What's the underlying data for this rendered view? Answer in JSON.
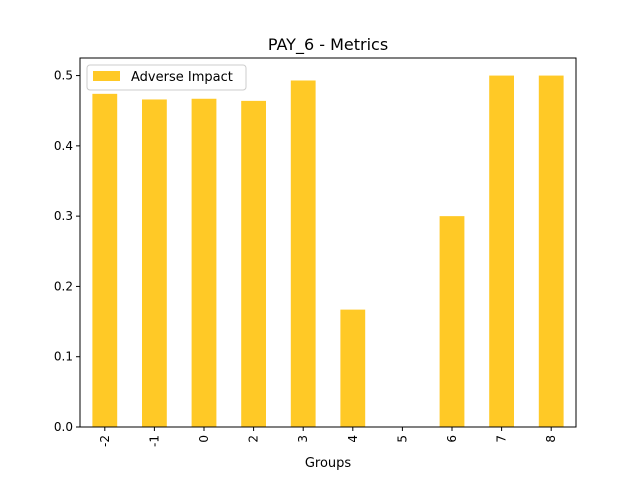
{
  "chart_data": {
    "type": "bar",
    "title": "PAY_6 - Metrics",
    "xlabel": "Groups",
    "ylabel": "",
    "categories": [
      "-2",
      "-1",
      "0",
      "2",
      "3",
      "4",
      "5",
      "6",
      "7",
      "8"
    ],
    "series": [
      {
        "name": "Adverse Impact",
        "color": "#ffc926",
        "values": [
          0.474,
          0.466,
          0.467,
          0.464,
          0.493,
          0.167,
          0.0,
          0.3,
          0.5,
          0.5
        ]
      }
    ],
    "ylim": [
      0,
      0.525
    ],
    "yticks": [
      "0.0",
      "0.1",
      "0.2",
      "0.3",
      "0.4",
      "0.5"
    ],
    "grid": false,
    "legend_position": "top-left"
  }
}
